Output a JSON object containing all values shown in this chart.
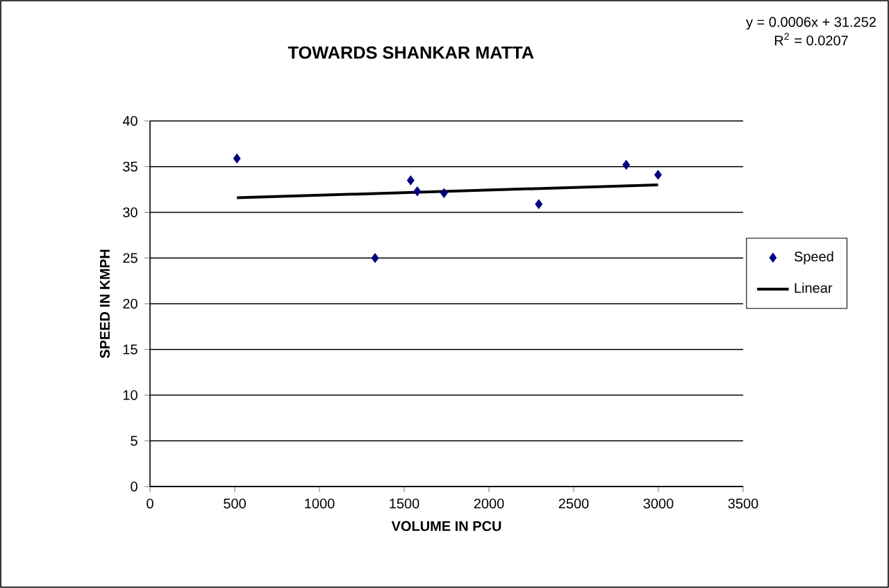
{
  "chart_data": {
    "type": "scatter",
    "title": "TOWARDS SHANKAR MATTA",
    "xlabel": "VOLUME IN PCU",
    "ylabel": "SPEED IN KMPH",
    "annotations": [
      "y = 0.0006x + 31.252",
      "R$^{2}$ = 0.0207"
    ],
    "series": [
      {
        "name": "Speed",
        "color": "#000080",
        "marker": "diamond",
        "x": [
          513,
          1328,
          1538,
          1577,
          1735,
          2294,
          2810,
          2998
        ],
        "values": [
          35.9,
          25.0,
          33.5,
          32.3,
          32.1,
          30.9,
          35.2,
          34.1
        ]
      },
      {
        "name": "Linear",
        "type": "line",
        "color": "#000000",
        "marker": "none",
        "line_style": "solid",
        "x": [
          513,
          2998
        ],
        "values": [
          31.6,
          33.0
        ]
      }
    ],
    "xlim": [
      0,
      3500
    ],
    "xticks": [
      0,
      500,
      1000,
      1500,
      2000,
      2500,
      3000,
      3500
    ],
    "ylim": [
      0,
      40
    ],
    "yticks": [
      0,
      5,
      10,
      15,
      20,
      25,
      30,
      35,
      40
    ],
    "grid": "y",
    "legend": "right"
  }
}
